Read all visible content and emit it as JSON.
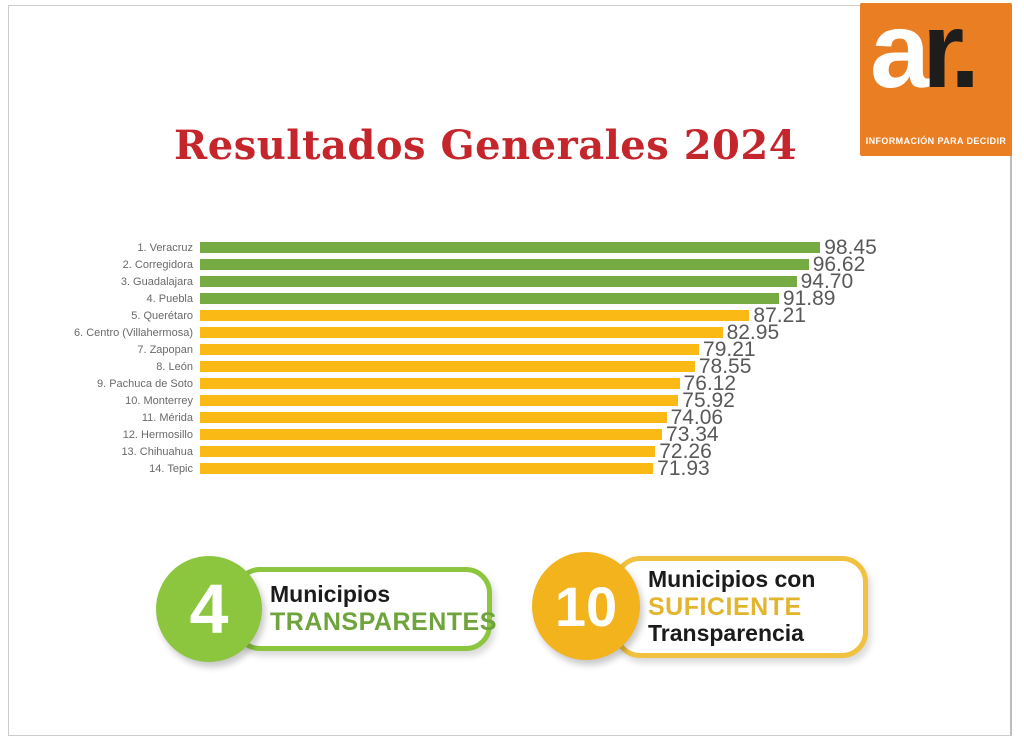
{
  "title": "Resultados Generales 2024",
  "logo": {
    "wordmark_a": "a",
    "wordmark_r": "r.",
    "tagline": "INFORMACIÓN PARA DECIDIR"
  },
  "chart_data": {
    "type": "bar",
    "orientation": "horizontal",
    "title": "Resultados Generales 2024",
    "xlabel": "",
    "ylabel": "",
    "xlim": [
      0,
      100
    ],
    "grid": false,
    "legend": "none",
    "categories": [
      "1. Veracruz",
      "2. Corregidora",
      "3. Guadalajara",
      "4. Puebla",
      "5. Querétaro",
      "6. Centro (Villahermosa)",
      "7. Zapopan",
      "8. León",
      "9. Pachuca de Soto",
      "10. Monterrey",
      "11. Mérida",
      "12. Hermosillo",
      "13. Chihuahua",
      "14. Tepic"
    ],
    "values": [
      98.45,
      96.62,
      94.7,
      91.89,
      87.21,
      82.95,
      79.21,
      78.55,
      76.12,
      75.92,
      74.06,
      73.34,
      72.26,
      71.93
    ],
    "value_labels": [
      "98.45",
      "96.62",
      "94.70",
      "91.89",
      "87.21",
      "82.95",
      "79.21",
      "78.55",
      "76.12",
      "75.92",
      "74.06",
      "73.34",
      "72.26",
      "71.93"
    ],
    "statuses": [
      "transparente",
      "transparente",
      "transparente",
      "transparente",
      "suficiente",
      "suficiente",
      "suficiente",
      "suficiente",
      "suficiente",
      "suficiente",
      "suficiente",
      "suficiente",
      "suficiente",
      "suficiente"
    ]
  },
  "badges": [
    {
      "count": "4",
      "line1": "Municipios",
      "line2": "TRANSPARENTES"
    },
    {
      "count": "10",
      "line1": "Municipios con",
      "line2": "SUFICIENTE",
      "line3": "Transparencia"
    }
  ],
  "colors": {
    "title": "#C4262B",
    "bar_green": "#76AB43",
    "bar_yellow": "#FBB916",
    "badge_green": "#8CC63F",
    "badge_green_text": "#6FA43C",
    "badge_yellow": "#F2B31C",
    "badge_yellow_border": "#F1C23F",
    "badge_yellow_text": "#E3B52E",
    "logo_orange": "#E97E23",
    "value_text": "#595959",
    "label_text": "#6A6A6A"
  }
}
